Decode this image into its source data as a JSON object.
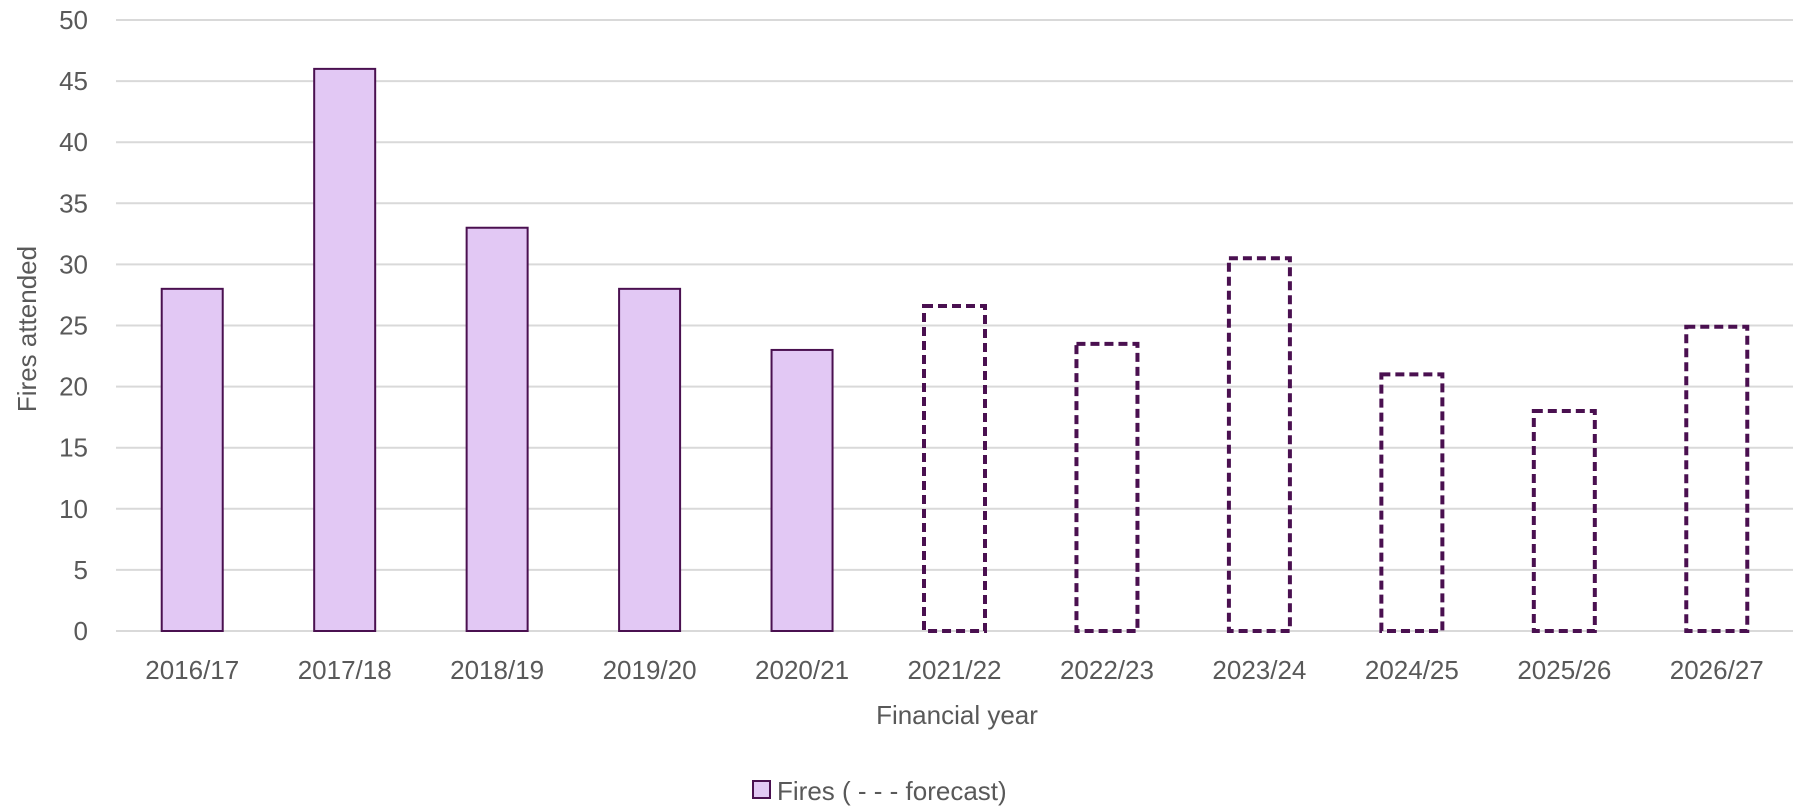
{
  "chart_data": {
    "type": "bar",
    "categories": [
      "2016/17",
      "2017/18",
      "2018/19",
      "2019/20",
      "2020/21",
      "2021/22",
      "2022/23",
      "2023/24",
      "2024/25",
      "2025/26",
      "2026/27"
    ],
    "series": [
      {
        "name": "Fires ( - - - forecast)",
        "values": [
          28,
          46,
          33,
          28,
          23,
          26.6,
          23.5,
          30.5,
          21,
          18,
          24.9
        ],
        "forecast": [
          false,
          false,
          false,
          false,
          false,
          true,
          true,
          true,
          true,
          true,
          true
        ]
      }
    ],
    "xlabel": "Financial year",
    "ylabel": "Fires attended",
    "ylim": [
      0,
      50
    ],
    "yticks": [
      0,
      5,
      10,
      15,
      20,
      25,
      30,
      35,
      40,
      45,
      50
    ],
    "grid": true,
    "legend_position": "bottom",
    "colors": {
      "fill": "#e2c8f4",
      "stroke": "#4a1050",
      "grid": "#d9d9d9",
      "text": "#595959"
    }
  }
}
